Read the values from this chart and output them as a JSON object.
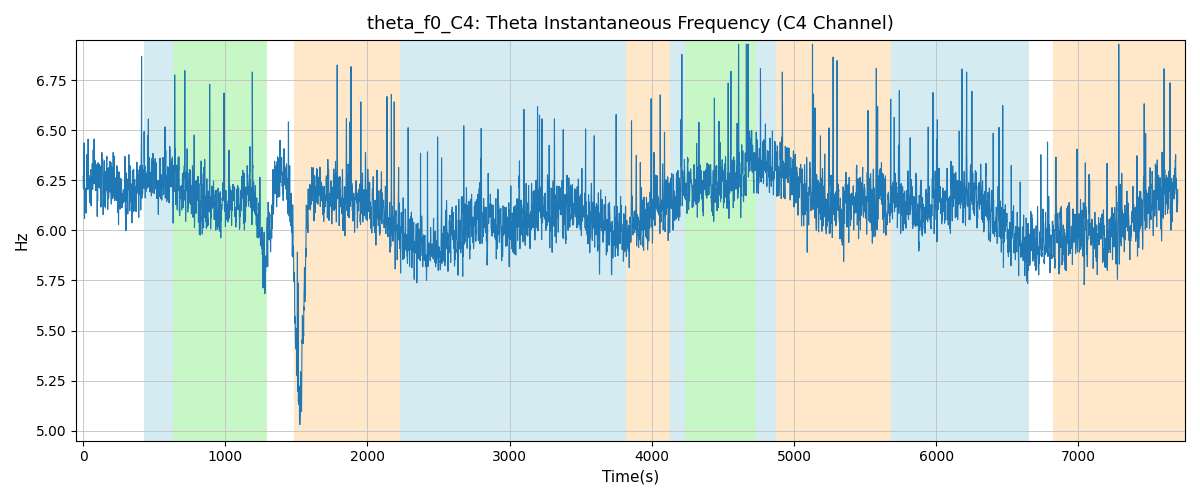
{
  "title": "theta_f0_C4: Theta Instantaneous Frequency (C4 Channel)",
  "xlabel": "Time(s)",
  "ylabel": "Hz",
  "ylim": [
    4.95,
    6.95
  ],
  "xlim": [
    -50,
    7750
  ],
  "xticks": [
    0,
    1000,
    2000,
    3000,
    4000,
    5000,
    6000,
    7000
  ],
  "yticks": [
    5.0,
    5.25,
    5.5,
    5.75,
    6.0,
    6.25,
    6.5,
    6.75
  ],
  "line_color": "#1f77b4",
  "line_width": 0.8,
  "bg_color": "#ffffff",
  "grid_color": "#c0c0c0",
  "title_fontsize": 13,
  "label_fontsize": 11,
  "background_regions": [
    {
      "start": 430,
      "end": 630,
      "color": "#add8e6",
      "alpha": 0.5
    },
    {
      "start": 630,
      "end": 1290,
      "color": "#90ee90",
      "alpha": 0.5
    },
    {
      "start": 1480,
      "end": 2230,
      "color": "#ffd59e",
      "alpha": 0.55
    },
    {
      "start": 2230,
      "end": 2500,
      "color": "#add8e6",
      "alpha": 0.5
    },
    {
      "start": 2500,
      "end": 3820,
      "color": "#add8e6",
      "alpha": 0.5
    },
    {
      "start": 3820,
      "end": 4130,
      "color": "#ffd59e",
      "alpha": 0.55
    },
    {
      "start": 4130,
      "end": 4230,
      "color": "#add8e6",
      "alpha": 0.5
    },
    {
      "start": 4230,
      "end": 4730,
      "color": "#90ee90",
      "alpha": 0.5
    },
    {
      "start": 4730,
      "end": 4870,
      "color": "#add8e6",
      "alpha": 0.5
    },
    {
      "start": 4870,
      "end": 5680,
      "color": "#ffd59e",
      "alpha": 0.55
    },
    {
      "start": 5680,
      "end": 6650,
      "color": "#add8e6",
      "alpha": 0.5
    },
    {
      "start": 6820,
      "end": 7750,
      "color": "#ffd59e",
      "alpha": 0.55
    }
  ],
  "seed": 2023,
  "n_points": 7700,
  "base_freq": 6.12,
  "noise_std": 0.13
}
